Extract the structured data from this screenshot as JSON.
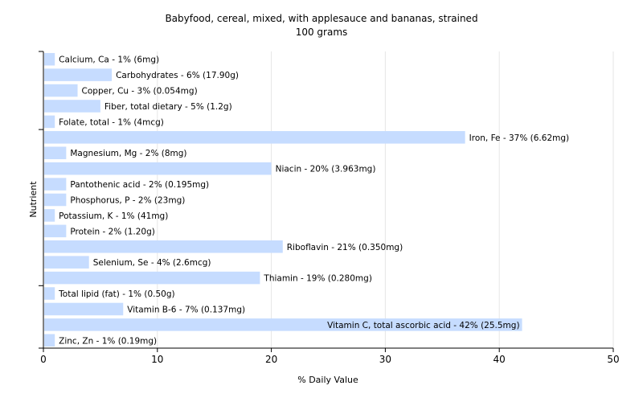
{
  "chart_data": {
    "type": "bar",
    "orientation": "horizontal",
    "title": "Babyfood, cereal, mixed, with applesauce and bananas, strained",
    "subtitle": "100 grams",
    "xlabel": "% Daily Value",
    "ylabel": "Nutrient",
    "xlim": [
      0,
      50
    ],
    "xticks": [
      0,
      10,
      20,
      30,
      40,
      50
    ],
    "grid": true,
    "bar_color": "#c6dcff",
    "categories": [
      "Calcium, Ca",
      "Carbohydrates",
      "Copper, Cu",
      "Fiber, total dietary",
      "Folate, total",
      "Iron, Fe",
      "Magnesium, Mg",
      "Niacin",
      "Pantothenic acid",
      "Phosphorus, P",
      "Potassium, K",
      "Protein",
      "Riboflavin",
      "Selenium, Se",
      "Thiamin",
      "Total lipid (fat)",
      "Vitamin B-6",
      "Vitamin C, total ascorbic acid",
      "Zinc, Zn"
    ],
    "values": [
      1,
      6,
      3,
      5,
      1,
      37,
      2,
      20,
      2,
      2,
      1,
      2,
      21,
      4,
      19,
      1,
      7,
      42,
      1
    ],
    "bar_labels": [
      "Calcium, Ca - 1% (6mg)",
      "Carbohydrates - 6% (17.90g)",
      "Copper, Cu - 3% (0.054mg)",
      "Fiber, total dietary - 5% (1.2g)",
      "Folate, total - 1% (4mcg)",
      "Iron, Fe - 37% (6.62mg)",
      "Magnesium, Mg - 2% (8mg)",
      "Niacin - 20% (3.963mg)",
      "Pantothenic acid - 2% (0.195mg)",
      "Phosphorus, P - 2% (23mg)",
      "Potassium, K - 1% (41mg)",
      "Protein - 2% (1.20g)",
      "Riboflavin - 21% (0.350mg)",
      "Selenium, Se - 4% (2.6mcg)",
      "Thiamin - 19% (0.280mg)",
      "Total lipid (fat) - 1% (0.50g)",
      "Vitamin B-6 - 7% (0.137mg)",
      "Vitamin C, total ascorbic acid - 42% (25.5mg)",
      "Zinc, Zn - 1% (0.19mg)"
    ]
  }
}
